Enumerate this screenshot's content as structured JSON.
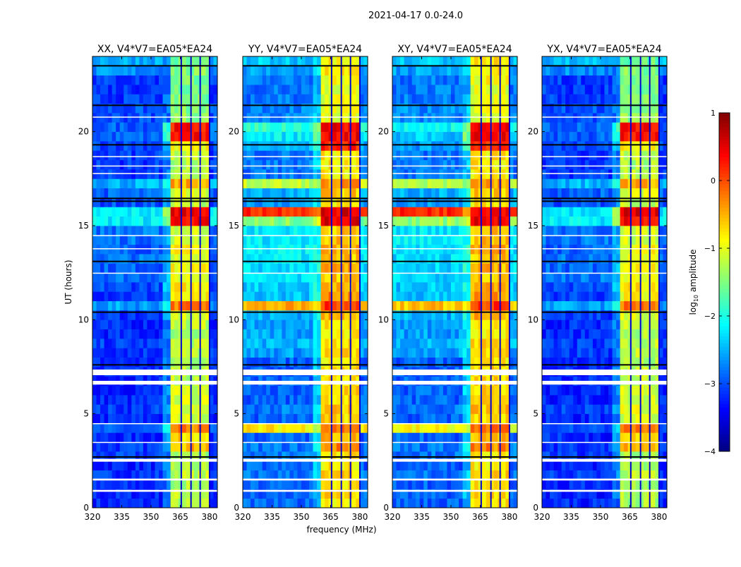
{
  "chart_data": {
    "type": "heatmap",
    "suptitle": "2021-04-17 0.0-24.0",
    "xlabel": "frequency (MHz)",
    "ylabel": "UT (hours)",
    "xlim": [
      320,
      384
    ],
    "ylim": [
      0,
      24
    ],
    "xticks": [
      "320",
      "335",
      "350",
      "365",
      "380"
    ],
    "xtick_values": [
      320,
      335,
      350,
      365,
      380
    ],
    "yticks": [
      "0",
      "5",
      "10",
      "15",
      "20"
    ],
    "ytick_values": [
      0,
      5,
      10,
      15,
      20
    ],
    "colorbar": {
      "label": "log10 amplitude",
      "label_main": "log",
      "label_sub": "10",
      "label_rest": " amplitude",
      "range": [
        -4,
        1
      ],
      "ticks": [
        "−4",
        "−3",
        "−2",
        "−1",
        "0",
        "1"
      ],
      "tick_values": [
        -4,
        -3,
        -2,
        -1,
        0,
        1
      ],
      "colormap": "jet"
    },
    "time_bin_hours": 0.5,
    "rfi_band_mhz": [
      361,
      380
    ],
    "band_gaps_mhz": [
      365.5,
      370.5,
      375.2,
      380
    ],
    "flagged_hours": [
      [
        0.85,
        0.95
      ],
      [
        1.45,
        1.55
      ],
      [
        2.45,
        2.6
      ],
      [
        3.45,
        3.5
      ],
      [
        4.45,
        4.5
      ],
      [
        6.55,
        6.75
      ],
      [
        7.05,
        7.35
      ],
      [
        12.45,
        12.5
      ],
      [
        13.75,
        13.8
      ],
      [
        14.45,
        14.5
      ],
      [
        17.75,
        17.8
      ],
      [
        18.15,
        18.2
      ],
      [
        18.65,
        18.7
      ],
      [
        20.75,
        20.8
      ]
    ],
    "black_line_hours": [
      2.7,
      7.6,
      10.4,
      13.1,
      16.3,
      16.45,
      19.3,
      21.4,
      23.5
    ],
    "panels": [
      {
        "title": "XX, V4*V7=EA05*EA24",
        "background_level": [
          -3.2,
          -3.2,
          -3.2,
          -3.1,
          -3.2,
          -3.1,
          -3.1,
          -3.2,
          -3.0,
          -3.2,
          -3.1,
          -3.2,
          -3.2,
          -3.2,
          -3.2,
          -3.2,
          -3.1,
          -3.1,
          -3.2,
          -3.2,
          -3.1,
          -2.6,
          -3.1,
          -3.0,
          -2.8,
          -2.9,
          -2.8,
          -2.9,
          -2.8,
          -2.8,
          -2.2,
          -2.2,
          -3.0,
          -2.9,
          -2.5,
          -3.1,
          -3.1,
          -3.1,
          -3.0,
          -2.9,
          -2.9,
          -3.0,
          -3.0,
          -3.1,
          -3.1,
          -3.1,
          -2.7,
          -2.5
        ],
        "band_level": [
          -1.3,
          -1.2,
          -1.3,
          -1.2,
          -1.3,
          -1.3,
          -0.5,
          -0.7,
          -0.3,
          -1.1,
          -1.0,
          -1.1,
          -1.1,
          -1.2,
          -1.2,
          -1.3,
          -1.2,
          -1.2,
          -1.3,
          -1.2,
          -1.1,
          -0.2,
          -0.9,
          -0.8,
          -1.0,
          -0.9,
          -1.0,
          -0.9,
          -1.1,
          -1.1,
          0.4,
          0.5,
          -1.2,
          -1.0,
          -0.5,
          -1.2,
          -1.3,
          -1.2,
          -0.9,
          0.3,
          0.3,
          -1.4,
          -1.5,
          -1.5,
          -1.5,
          -1.5,
          -1.5,
          -1.6
        ]
      },
      {
        "title": "YY, V4*V7=EA05*EA24",
        "background_level": [
          -2.9,
          -2.9,
          -2.9,
          -2.8,
          -2.9,
          -2.8,
          -2.8,
          -2.9,
          -0.8,
          -2.9,
          -2.8,
          -2.9,
          -2.9,
          -2.9,
          -2.9,
          -2.9,
          -2.6,
          -2.5,
          -2.6,
          -2.6,
          -2.5,
          -0.5,
          -2.4,
          -2.4,
          -2.3,
          -2.3,
          -2.2,
          -2.2,
          -2.2,
          -2.2,
          -1.5,
          0.2,
          -2.6,
          -2.5,
          -1.2,
          -2.8,
          -2.8,
          -2.8,
          -2.5,
          -2.2,
          -1.9,
          -2.7,
          -2.7,
          -2.8,
          -2.8,
          -2.8,
          -2.6,
          -2.4
        ],
        "band_level": [
          -0.8,
          -0.7,
          -0.8,
          -0.7,
          -0.8,
          -0.8,
          -0.3,
          -0.5,
          -0.2,
          -0.7,
          -0.6,
          -0.7,
          -0.7,
          -0.7,
          -0.7,
          -0.8,
          -0.7,
          -0.7,
          -0.8,
          -0.7,
          -0.5,
          0.1,
          -0.3,
          -0.5,
          -0.6,
          -0.5,
          -0.6,
          -0.5,
          -0.6,
          -0.6,
          0.5,
          0.5,
          -0.8,
          -0.6,
          -0.4,
          -0.8,
          -0.8,
          -0.8,
          0.2,
          0.4,
          0.4,
          -1.0,
          -1.0,
          -1.0,
          -1.0,
          -0.9,
          -0.8,
          -0.8
        ]
      },
      {
        "title": "XY, V4*V7=EA05*EA24",
        "background_level": [
          -2.9,
          -2.9,
          -2.9,
          -2.8,
          -2.9,
          -2.8,
          -2.8,
          -2.9,
          -0.9,
          -2.9,
          -2.8,
          -2.9,
          -2.9,
          -2.9,
          -2.9,
          -2.9,
          -2.6,
          -2.5,
          -2.6,
          -2.6,
          -2.5,
          -0.6,
          -2.4,
          -2.4,
          -2.3,
          -2.3,
          -2.3,
          -2.3,
          -2.2,
          -2.2,
          -1.4,
          0.2,
          -2.6,
          -2.5,
          -1.3,
          -2.8,
          -2.8,
          -2.8,
          -2.6,
          -2.4,
          -2.1,
          -2.7,
          -2.7,
          -2.8,
          -2.8,
          -2.8,
          -2.6,
          -2.4
        ],
        "band_level": [
          -0.8,
          -0.7,
          -0.8,
          -0.7,
          -0.8,
          -0.8,
          -0.3,
          -0.5,
          -0.2,
          -0.7,
          -0.6,
          -0.7,
          -0.7,
          -0.7,
          -0.7,
          -0.8,
          -0.7,
          -0.7,
          -0.8,
          -0.7,
          -0.5,
          0.1,
          -0.4,
          -0.5,
          -0.6,
          -0.5,
          -0.6,
          -0.5,
          -0.6,
          -0.6,
          0.5,
          0.5,
          -0.8,
          -0.6,
          -0.4,
          -0.8,
          -0.8,
          -0.8,
          0.2,
          0.4,
          0.4,
          -1.0,
          -1.0,
          -1.0,
          -1.0,
          -0.9,
          -0.8,
          -0.8
        ]
      },
      {
        "title": "YX, V4*V7=EA05*EA24",
        "background_level": [
          -3.2,
          -3.2,
          -3.2,
          -3.1,
          -3.2,
          -3.1,
          -3.1,
          -3.2,
          -3.0,
          -3.2,
          -3.1,
          -3.2,
          -3.2,
          -3.2,
          -3.2,
          -3.2,
          -3.1,
          -3.1,
          -3.2,
          -3.2,
          -3.1,
          -2.6,
          -3.1,
          -3.0,
          -2.8,
          -2.9,
          -2.8,
          -2.9,
          -2.8,
          -2.8,
          -2.2,
          -2.2,
          -3.0,
          -2.9,
          -2.5,
          -3.1,
          -3.1,
          -3.1,
          -3.0,
          -2.9,
          -2.9,
          -3.0,
          -3.0,
          -3.1,
          -3.1,
          -3.1,
          -2.7,
          -2.5
        ],
        "band_level": [
          -1.3,
          -1.2,
          -1.3,
          -1.2,
          -1.3,
          -1.3,
          -0.5,
          -0.7,
          -0.3,
          -1.1,
          -1.0,
          -1.1,
          -1.1,
          -1.2,
          -1.2,
          -1.3,
          -1.2,
          -1.2,
          -1.3,
          -1.2,
          -1.1,
          -0.2,
          -0.9,
          -0.8,
          -1.0,
          -0.9,
          -1.0,
          -0.9,
          -1.1,
          -1.1,
          0.4,
          0.5,
          -1.2,
          -1.0,
          -0.5,
          -1.2,
          -1.3,
          -1.2,
          -0.9,
          0.3,
          0.3,
          -1.4,
          -1.5,
          -1.5,
          -1.5,
          -1.5,
          -1.5,
          -1.6
        ]
      }
    ]
  }
}
